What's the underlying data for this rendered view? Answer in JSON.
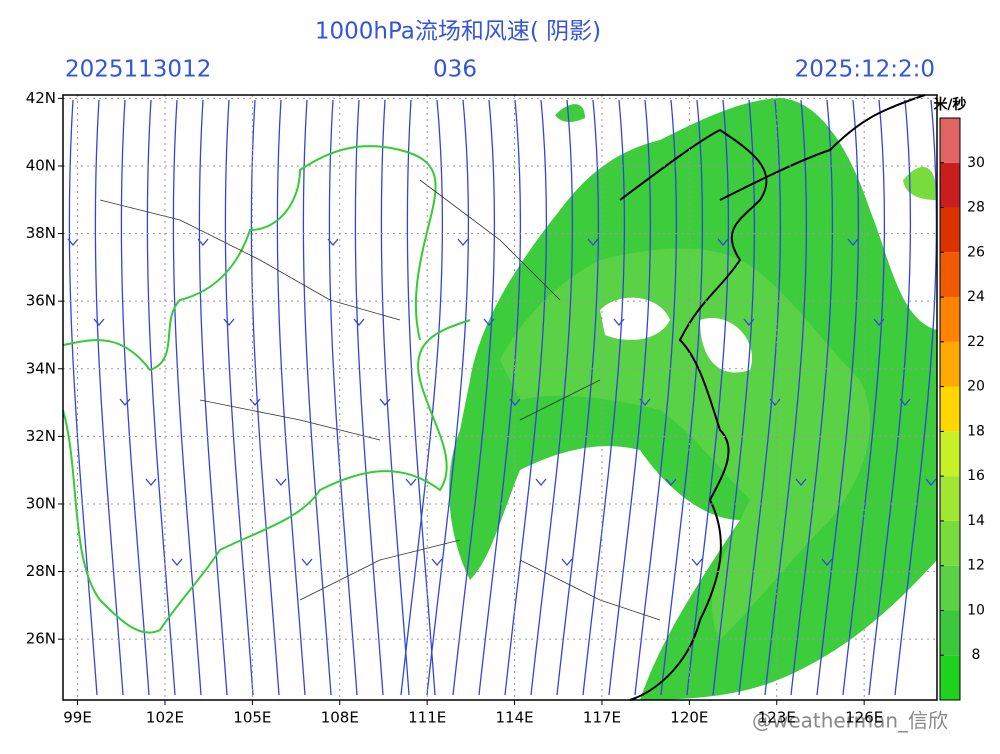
{
  "header": {
    "title": "1000hPa流场和风速( 阴影)",
    "init_time": "2025113012",
    "forecast_hour": "036",
    "valid_time": "2025:12:2:0"
  },
  "map": {
    "lat_ticks": [
      {
        "value": 26,
        "label": "26N"
      },
      {
        "value": 28,
        "label": "28N"
      },
      {
        "value": 30,
        "label": "30N"
      },
      {
        "value": 32,
        "label": "32N"
      },
      {
        "value": 34,
        "label": "34N"
      },
      {
        "value": 36,
        "label": "36N"
      },
      {
        "value": 38,
        "label": "38N"
      },
      {
        "value": 40,
        "label": "40N"
      },
      {
        "value": 42,
        "label": "42N"
      }
    ],
    "lon_ticks": [
      {
        "value": 99,
        "label": "99E"
      },
      {
        "value": 102,
        "label": "102E"
      },
      {
        "value": 105,
        "label": "105E"
      },
      {
        "value": 108,
        "label": "108E"
      },
      {
        "value": 111,
        "label": "111E"
      },
      {
        "value": 114,
        "label": "114E"
      },
      {
        "value": 117,
        "label": "117E"
      },
      {
        "value": 120,
        "label": "120E"
      },
      {
        "value": 123,
        "label": "123E"
      },
      {
        "value": 126,
        "label": "126E"
      }
    ],
    "lat_range": [
      24.2,
      42.1
    ],
    "lon_range": [
      98.5,
      128.5
    ],
    "colorbar": {
      "unit": "米/秒",
      "range": [
        6,
        32
      ],
      "ticks": [
        8,
        10,
        12,
        14,
        16,
        18,
        20,
        22,
        24,
        26,
        28,
        30
      ],
      "colors": [
        "#1ed21e",
        "#3cc83c",
        "#5ad246",
        "#78dc3c",
        "#a0e632",
        "#c8f028",
        "#ffd700",
        "#ffaa00",
        "#ff8200",
        "#f05a00",
        "#dc3200",
        "#c81e1e",
        "#e06464"
      ]
    }
  },
  "watermark": "@weatherman_信欣"
}
